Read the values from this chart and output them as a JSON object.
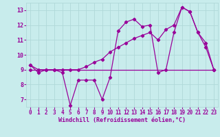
{
  "title": "",
  "xlabel": "Windchill (Refroidissement éolien,°C)",
  "bg_color": "#c8ecec",
  "grid_color": "#b0d8d8",
  "line_color": "#990099",
  "xlim": [
    -0.5,
    23.5
  ],
  "ylim": [
    6.5,
    13.5
  ],
  "xticks": [
    0,
    1,
    2,
    3,
    4,
    5,
    6,
    7,
    8,
    9,
    10,
    11,
    12,
    13,
    14,
    15,
    16,
    17,
    18,
    19,
    20,
    21,
    22,
    23
  ],
  "yticks": [
    7,
    8,
    9,
    10,
    11,
    12,
    13
  ],
  "series1_x": [
    0,
    1,
    2,
    3,
    4,
    5,
    6,
    7,
    8,
    9,
    10,
    11,
    12,
    13,
    14,
    15,
    16,
    17,
    18,
    19,
    20,
    21,
    22,
    23
  ],
  "series1_y": [
    9.3,
    8.8,
    9.0,
    9.0,
    8.8,
    6.6,
    8.3,
    8.3,
    8.3,
    7.0,
    8.5,
    11.6,
    12.2,
    12.4,
    11.9,
    12.0,
    8.8,
    9.0,
    11.5,
    13.2,
    12.9,
    11.5,
    10.5,
    9.0
  ],
  "series2_x": [
    0,
    1,
    2,
    3,
    4,
    5,
    6,
    7,
    8,
    9,
    10,
    11,
    12,
    13,
    14,
    15,
    16,
    17,
    18,
    19,
    20,
    21,
    22,
    23
  ],
  "series2_y": [
    9.3,
    9.0,
    9.0,
    9.0,
    9.0,
    9.0,
    9.0,
    9.2,
    9.5,
    9.7,
    10.2,
    10.5,
    10.8,
    11.1,
    11.3,
    11.5,
    11.0,
    11.7,
    12.0,
    13.2,
    12.9,
    11.5,
    10.8,
    9.0
  ],
  "series3_x": [
    0,
    23
  ],
  "series3_y": [
    9.0,
    9.0
  ],
  "xlabel_fontsize": 6,
  "tick_fontsize": 5.5,
  "marker_size": 2.2,
  "line_width": 0.9
}
